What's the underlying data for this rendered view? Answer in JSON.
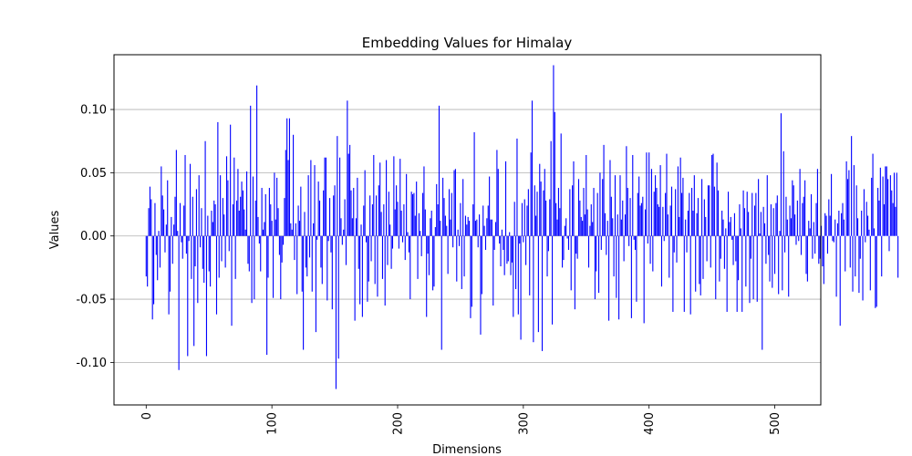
{
  "chart_data": {
    "type": "bar",
    "title": "Embedding Values for Himalay",
    "xlabel": "Dimensions",
    "ylabel": "Values",
    "xlim": [
      -25.6,
      536.6
    ],
    "ylim": [
      -0.1336,
      0.1433
    ],
    "x_ticks": [
      0,
      100,
      200,
      300,
      400,
      500
    ],
    "y_ticks": [
      -0.1,
      -0.05,
      0.0,
      0.05,
      0.1
    ],
    "grid": "horizontal",
    "bar_color": "#0000ff",
    "series": [
      {
        "values": [
          -0.032,
          -0.04,
          0.022,
          0.039,
          0.029,
          -0.066,
          -0.054,
          0.026,
          -0.015,
          -0.035,
          0.004,
          -0.025,
          0.055,
          0.032,
          0.021,
          -0.013,
          0.009,
          0.044,
          -0.062,
          -0.044,
          0.015,
          -0.022,
          0.009,
          0.031,
          0.068,
          0.004,
          -0.106,
          0.026,
          -0.005,
          -0.018,
          0.024,
          0.064,
          -0.014,
          -0.095,
          -0.004,
          0.057,
          -0.034,
          0.031,
          -0.087,
          -0.024,
          0.037,
          -0.053,
          0.048,
          -0.009,
          0.022,
          -0.026,
          -0.037,
          0.075,
          -0.095,
          0.016,
          -0.028,
          -0.04,
          0.02,
          0.011,
          0.028,
          0.025,
          -0.062,
          0.09,
          -0.033,
          0.048,
          -0.02,
          0.03,
          0.017,
          -0.025,
          0.063,
          0.044,
          -0.012,
          0.088,
          -0.071,
          0.025,
          0.062,
          -0.034,
          0.028,
          0.053,
          0.02,
          0.031,
          0.043,
          0.036,
          0.021,
          0.005,
          0.051,
          -0.022,
          -0.028,
          0.103,
          -0.053,
          0.047,
          -0.05,
          0.028,
          0.119,
          0.015,
          -0.006,
          -0.028,
          0.038,
          0.005,
          0.011,
          0.033,
          -0.094,
          -0.033,
          0.038,
          0.025,
          0.012,
          -0.049,
          0.05,
          0.013,
          0.046,
          0.022,
          -0.015,
          -0.05,
          -0.021,
          -0.007,
          0.03,
          0.068,
          0.093,
          0.06,
          0.093,
          0.01,
          0.005,
          0.08,
          -0.019,
          0.01,
          -0.046,
          0.024,
          0.012,
          0.039,
          -0.044,
          -0.09,
          0.019,
          -0.025,
          -0.032,
          0.048,
          -0.017,
          0.06,
          -0.044,
          0.01,
          0.056,
          -0.076,
          -0.003,
          0.043,
          0.028,
          -0.025,
          -0.038,
          0.036,
          0.062,
          0.062,
          -0.051,
          -0.004,
          0.03,
          -0.013,
          -0.058,
          0.032,
          0.04,
          -0.121,
          0.079,
          -0.097,
          0.062,
          0.014,
          -0.007,
          0.005,
          0.029,
          -0.023,
          0.107,
          0.065,
          0.072,
          0.036,
          0.014,
          0.038,
          -0.067,
          0.014,
          0.046,
          -0.026,
          -0.054,
          0.009,
          -0.064,
          0.024,
          0.052,
          -0.005,
          -0.052,
          -0.036,
          0.032,
          -0.02,
          0.025,
          0.064,
          -0.038,
          0.032,
          -0.048,
          0.04,
          0.058,
          0.019,
          -0.034,
          0.025,
          -0.055,
          0.06,
          -0.023,
          0.035,
          0.009,
          -0.026,
          -0.01,
          0.063,
          0.021,
          0.04,
          0.027,
          -0.01,
          0.061,
          0.02,
          -0.005,
          0.025,
          -0.019,
          0.049,
          0.003,
          -0.013,
          -0.05,
          0.035,
          0.033,
          0.034,
          0.016,
          0.043,
          -0.034,
          0.018,
          0.004,
          -0.016,
          0.034,
          0.055,
          0.021,
          -0.064,
          -0.014,
          -0.031,
          0.014,
          0.02,
          -0.043,
          -0.04,
          0.007,
          0.041,
          0.025,
          0.103,
          0.012,
          -0.09,
          0.046,
          0.03,
          0.016,
          0.008,
          -0.03,
          0.037,
          0.013,
          0.034,
          -0.009,
          0.052,
          0.053,
          -0.036,
          0.005,
          -0.008,
          0.026,
          -0.042,
          0.045,
          -0.032,
          0.016,
          0.009,
          0.015,
          0.012,
          -0.065,
          -0.056,
          0.025,
          0.082,
          0.012,
          0.013,
          -0.009,
          0.017,
          -0.078,
          -0.046,
          0.024,
          0.008,
          -0.011,
          0.014,
          0.024,
          0.047,
          0.013,
          0.013,
          -0.055,
          -0.011,
          0.011,
          0.068,
          0.053,
          -0.006,
          -0.024,
          0.005,
          -0.011,
          -0.031,
          0.059,
          -0.022,
          -0.02,
          0.003,
          -0.031,
          -0.021,
          -0.064,
          0.027,
          -0.042,
          0.077,
          -0.062,
          -0.006,
          -0.082,
          0.026,
          -0.005,
          0.029,
          -0.023,
          0.024,
          0.037,
          -0.047,
          0.066,
          0.107,
          -0.084,
          0.04,
          0.016,
          0.035,
          -0.076,
          0.057,
          0.043,
          -0.091,
          0.036,
          0.053,
          0.028,
          -0.032,
          -0.012,
          0.029,
          0.075,
          -0.07,
          0.135,
          0.098,
          0.026,
          0.013,
          0.038,
          0.022,
          0.081,
          -0.025,
          -0.019,
          0.008,
          0.014,
          -0.002,
          -0.011,
          0.037,
          -0.043,
          0.04,
          0.059,
          -0.058,
          -0.014,
          -0.018,
          0.045,
          0.028,
          0.015,
          0.012,
          0.038,
          0.017,
          0.064,
          0.021,
          -0.025,
          0.008,
          0.025,
          0.011,
          0.038,
          -0.05,
          -0.028,
          0.034,
          -0.045,
          0.05,
          -0.011,
          0.045,
          0.072,
          0.018,
          -0.015,
          0.012,
          -0.067,
          0.06,
          0.031,
          0.014,
          -0.032,
          0.048,
          -0.049,
          0.017,
          -0.066,
          0.048,
          0.013,
          0.028,
          -0.02,
          0.017,
          0.071,
          0.038,
          -0.008,
          0.03,
          -0.065,
          0.064,
          -0.003,
          -0.011,
          -0.052,
          0.034,
          0.047,
          0.024,
          0.026,
          0.031,
          -0.069,
          0.021,
          0.066,
          -0.006,
          0.066,
          -0.022,
          0.053,
          -0.028,
          0.035,
          0.048,
          0.038,
          0.025,
          0.023,
          0.056,
          -0.04,
          0.023,
          -0.004,
          0.034,
          0.065,
          0.017,
          -0.033,
          0.024,
          0.039,
          -0.06,
          -0.013,
          0.037,
          -0.021,
          0.055,
          0.015,
          0.062,
          0.034,
          0.046,
          -0.06,
          0.013,
          -0.013,
          0.02,
          0.034,
          -0.062,
          0.038,
          0.02,
          0.048,
          -0.044,
          0.018,
          0.03,
          -0.038,
          -0.047,
          0.045,
          -0.034,
          0.029,
          0.015,
          -0.02,
          0.04,
          0.04,
          -0.025,
          0.064,
          0.065,
          0.039,
          -0.05,
          0.058,
          0.036,
          -0.036,
          -0.018,
          0.02,
          0.013,
          -0.026,
          0.006,
          -0.06,
          0.035,
          0.011,
          0.015,
          -0.003,
          -0.023,
          0.018,
          -0.02,
          -0.06,
          -0.035,
          0.025,
          0.006,
          -0.06,
          0.036,
          0.022,
          -0.04,
          0.035,
          0.019,
          -0.053,
          -0.018,
          0.034,
          -0.05,
          0.024,
          0.034,
          -0.052,
          0.045,
          0.002,
          0.019,
          -0.09,
          0.023,
          0.01,
          -0.022,
          0.048,
          -0.015,
          -0.036,
          0.025,
          -0.041,
          0.022,
          -0.03,
          0.026,
          0.032,
          -0.046,
          0.004,
          0.097,
          -0.043,
          0.067,
          -0.013,
          0.031,
          0.013,
          -0.048,
          0.024,
          0.014,
          0.044,
          0.04,
          0.017,
          -0.007,
          0.028,
          -0.004,
          0.053,
          -0.015,
          0.026,
          0.031,
          0.044,
          -0.03,
          -0.036,
          0.012,
          0.006,
          0.033,
          -0.018,
          0.011,
          -0.014,
          0.026,
          0.053,
          -0.022,
          -0.018,
          0.008,
          -0.024,
          -0.038,
          0.018,
          0.016,
          -0.014,
          0.029,
          0.016,
          0.049,
          -0.004,
          -0.005,
          0.013,
          -0.048,
          0.01,
          0.02,
          -0.071,
          0.018,
          0.026,
          0.013,
          -0.028,
          0.059,
          0.045,
          0.052,
          -0.025,
          0.079,
          -0.044,
          0.056,
          -0.032,
          0.04,
          0.014,
          -0.045,
          -0.018,
          0.02,
          -0.051,
          0.037,
          -0.005,
          0.027,
          0.016,
          0.005,
          -0.043,
          0.046,
          0.065,
          0.006,
          -0.057,
          -0.056,
          0.038,
          0.028,
          0.054,
          -0.032,
          0.047,
          0.025,
          0.055,
          0.055,
          0.045,
          -0.012,
          0.048,
          0.036,
          0.026,
          0.05,
          0.023,
          0.05,
          -0.033
        ]
      }
    ]
  }
}
